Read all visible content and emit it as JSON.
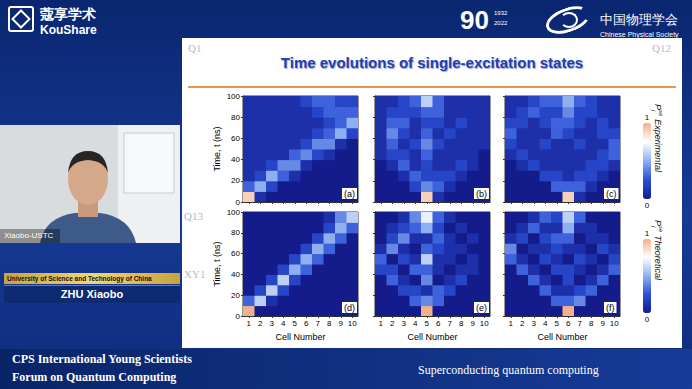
{
  "header": {
    "logo_cn": "蔻享学术",
    "logo_en": "KouShare",
    "anniversary": "90",
    "years": [
      "1932",
      "2022"
    ],
    "society_cn": "中国物理学会",
    "society_en": "Chinese Physical Society"
  },
  "speaker": {
    "video_label": "Xiaobo-USTC",
    "affiliation": "University of Science and Technology of China",
    "name": "ZHU Xiaobo"
  },
  "slide": {
    "title": "Time evolutions of single-excitation states",
    "background_labels": [
      "Q1",
      "Q12",
      "Q13",
      "XY1"
    ],
    "colorbars": [
      {
        "symbol": "P",
        "subscript": "j",
        "superscript": "se",
        "caption": "Experimental",
        "range": [
          0,
          1
        ],
        "ticks": [
          0,
          1
        ]
      },
      {
        "symbol": "P",
        "subscript": "j",
        "superscript": "se",
        "caption": "Theoretical",
        "range": [
          0,
          1
        ],
        "ticks": [
          0,
          1
        ]
      }
    ]
  },
  "chart_data": [
    {
      "type": "heatmap",
      "label": "(a)",
      "ylabel": "Time, t (ns)",
      "tick_labels": "y",
      "x": [
        1,
        2,
        3,
        4,
        5,
        6,
        7,
        8,
        9,
        10
      ],
      "y": [
        0,
        10,
        20,
        30,
        40,
        50,
        60,
        70,
        80,
        90
      ],
      "xlim": [
        0.5,
        10.5
      ],
      "ylim": [
        0,
        100
      ],
      "xticks": [
        1,
        2,
        3,
        4,
        5,
        6,
        7,
        8,
        9,
        10
      ],
      "yticks": [
        0,
        20,
        40,
        60,
        80,
        100
      ],
      "cells": [
        [
          0.9,
          0.1,
          0,
          0,
          0,
          0,
          0,
          0,
          0,
          0
        ],
        [
          0.3,
          0.5,
          0.2,
          0,
          0,
          0,
          0,
          0,
          0,
          0
        ],
        [
          0.1,
          0.2,
          0.5,
          0.3,
          0.1,
          0,
          0,
          0,
          0,
          0
        ],
        [
          0.1,
          0.1,
          0.2,
          0.4,
          0.4,
          0.1,
          0,
          0,
          0,
          0
        ],
        [
          0.1,
          0.1,
          0.1,
          0.1,
          0.3,
          0.4,
          0.2,
          0.1,
          0,
          0
        ],
        [
          0.1,
          0.1,
          0.1,
          0.1,
          0.1,
          0.2,
          0.4,
          0.4,
          0.1,
          0
        ],
        [
          0.1,
          0.1,
          0.1,
          0.1,
          0.1,
          0.1,
          0.2,
          0.3,
          0.5,
          0.2
        ],
        [
          0.1,
          0.1,
          0.1,
          0.1,
          0.1,
          0.1,
          0.1,
          0.2,
          0.3,
          0.5
        ],
        [
          0.1,
          0.1,
          0.1,
          0.1,
          0.1,
          0.1,
          0.2,
          0.3,
          0.3,
          0.3
        ],
        [
          0.1,
          0.1,
          0.1,
          0.1,
          0.1,
          0.2,
          0.3,
          0.3,
          0.2,
          0.2
        ]
      ]
    },
    {
      "type": "heatmap",
      "label": "(b)",
      "tick_labels": false,
      "x": [
        1,
        2,
        3,
        4,
        5,
        6,
        7,
        8,
        9,
        10
      ],
      "y": [
        0,
        10,
        20,
        30,
        40,
        50,
        60,
        70,
        80,
        90
      ],
      "xlim": [
        0.5,
        10.5
      ],
      "ylim": [
        0,
        100
      ],
      "xticks": [
        1,
        2,
        3,
        4,
        5,
        6,
        7,
        8,
        9,
        10
      ],
      "yticks": [
        0,
        20,
        40,
        60,
        80,
        100
      ],
      "cells": [
        [
          0,
          0,
          0,
          0,
          0.9,
          0.1,
          0,
          0,
          0,
          0
        ],
        [
          0,
          0,
          0,
          0.2,
          0.4,
          0.3,
          0.1,
          0,
          0,
          0
        ],
        [
          0,
          0,
          0.1,
          0.3,
          0.2,
          0.2,
          0.2,
          0.1,
          0,
          0
        ],
        [
          0,
          0.1,
          0.3,
          0.1,
          0.2,
          0.1,
          0.1,
          0.2,
          0.1,
          0
        ],
        [
          0.1,
          0.2,
          0.2,
          0.1,
          0.3,
          0.1,
          0.1,
          0.1,
          0.1,
          0
        ],
        [
          0.1,
          0.3,
          0.1,
          0.2,
          0.4,
          0.2,
          0.1,
          0.1,
          0.1,
          0.1
        ],
        [
          0.1,
          0.4,
          0.2,
          0.1,
          0.3,
          0.1,
          0.2,
          0.1,
          0.1,
          0.1
        ],
        [
          0.1,
          0.3,
          0.3,
          0.1,
          0.2,
          0.2,
          0.1,
          0.2,
          0.1,
          0.1
        ],
        [
          0.1,
          0.2,
          0.2,
          0.2,
          0.3,
          0.3,
          0.1,
          0.1,
          0.1,
          0.1
        ],
        [
          0.1,
          0.1,
          0.2,
          0.3,
          0.6,
          0.3,
          0.1,
          0.1,
          0.1,
          0.1
        ]
      ]
    },
    {
      "type": "heatmap",
      "label": "(c)",
      "tick_labels": false,
      "x": [
        1,
        2,
        3,
        4,
        5,
        6,
        7,
        8,
        9,
        10
      ],
      "y": [
        0,
        10,
        20,
        30,
        40,
        50,
        60,
        70,
        80,
        90
      ],
      "xlim": [
        0.5,
        10.5
      ],
      "ylim": [
        0,
        100
      ],
      "xticks": [
        1,
        2,
        3,
        4,
        5,
        6,
        7,
        8,
        9,
        10
      ],
      "yticks": [
        0,
        20,
        40,
        60,
        80,
        100
      ],
      "cells": [
        [
          0,
          0,
          0,
          0,
          0,
          0.9,
          0.1,
          0,
          0,
          0
        ],
        [
          0,
          0,
          0,
          0,
          0.3,
          0.3,
          0.3,
          0.1,
          0,
          0
        ],
        [
          0,
          0,
          0,
          0.2,
          0.2,
          0.1,
          0.2,
          0.2,
          0.1,
          0
        ],
        [
          0,
          0.1,
          0.2,
          0.1,
          0.1,
          0.1,
          0.1,
          0.2,
          0.2,
          0.1
        ],
        [
          0.1,
          0.2,
          0.1,
          0.1,
          0.1,
          0.1,
          0.1,
          0.1,
          0.2,
          0.3
        ],
        [
          0.2,
          0.1,
          0.1,
          0.2,
          0.1,
          0.1,
          0.2,
          0.1,
          0.1,
          0.3
        ],
        [
          0.3,
          0.1,
          0.1,
          0.1,
          0.3,
          0.2,
          0.1,
          0.1,
          0.2,
          0.2
        ],
        [
          0.2,
          0.2,
          0.1,
          0.2,
          0.3,
          0.3,
          0.2,
          0.1,
          0.2,
          0.1
        ],
        [
          0.1,
          0.2,
          0.3,
          0.2,
          0.2,
          0.4,
          0.2,
          0.2,
          0.1,
          0.1
        ],
        [
          0.1,
          0.1,
          0.2,
          0.3,
          0.3,
          0.5,
          0.3,
          0.2,
          0.1,
          0.1
        ]
      ]
    },
    {
      "type": "heatmap",
      "label": "(d)",
      "xlabel": "Cell Number",
      "ylabel": "Time, t (ns)",
      "tick_labels": true,
      "x": [
        1,
        2,
        3,
        4,
        5,
        6,
        7,
        8,
        9,
        10
      ],
      "y": [
        0,
        10,
        20,
        30,
        40,
        50,
        60,
        70,
        80,
        90
      ],
      "xlim": [
        0.5,
        10.5
      ],
      "ylim": [
        0,
        100
      ],
      "xticks": [
        1,
        2,
        3,
        4,
        5,
        6,
        7,
        8,
        9,
        10
      ],
      "yticks": [
        0,
        20,
        40,
        60,
        80,
        100
      ],
      "cells": [
        [
          1.0,
          0,
          0,
          0,
          0,
          0,
          0,
          0,
          0,
          0
        ],
        [
          0.3,
          0.6,
          0.1,
          0,
          0,
          0,
          0,
          0,
          0,
          0
        ],
        [
          0,
          0.2,
          0.6,
          0.2,
          0,
          0,
          0,
          0,
          0,
          0
        ],
        [
          0,
          0,
          0.2,
          0.6,
          0.2,
          0,
          0,
          0,
          0,
          0
        ],
        [
          0,
          0,
          0,
          0.2,
          0.5,
          0.3,
          0,
          0,
          0,
          0
        ],
        [
          0,
          0,
          0,
          0,
          0.2,
          0.5,
          0.3,
          0,
          0,
          0
        ],
        [
          0,
          0,
          0,
          0,
          0,
          0.2,
          0.5,
          0.3,
          0,
          0
        ],
        [
          0,
          0,
          0,
          0,
          0,
          0,
          0.2,
          0.5,
          0.3,
          0
        ],
        [
          0,
          0,
          0,
          0,
          0,
          0,
          0,
          0.2,
          0.5,
          0.3
        ],
        [
          0,
          0,
          0,
          0,
          0,
          0,
          0,
          0.1,
          0.4,
          0.6
        ]
      ]
    },
    {
      "type": "heatmap",
      "label": "(e)",
      "xlabel": "Cell Number",
      "tick_labels": "x",
      "x": [
        1,
        2,
        3,
        4,
        5,
        6,
        7,
        8,
        9,
        10
      ],
      "y": [
        0,
        10,
        20,
        30,
        40,
        50,
        60,
        70,
        80,
        90
      ],
      "xlim": [
        0.5,
        10.5
      ],
      "ylim": [
        0,
        100
      ],
      "xticks": [
        1,
        2,
        3,
        4,
        5,
        6,
        7,
        8,
        9,
        10
      ],
      "yticks": [
        0,
        20,
        40,
        60,
        80,
        100
      ],
      "cells": [
        [
          0,
          0,
          0,
          0,
          1.0,
          0,
          0,
          0,
          0,
          0
        ],
        [
          0,
          0,
          0,
          0.3,
          0.4,
          0.3,
          0,
          0,
          0,
          0
        ],
        [
          0,
          0,
          0.2,
          0.2,
          0.1,
          0.3,
          0.2,
          0,
          0,
          0
        ],
        [
          0,
          0.3,
          0.1,
          0,
          0.4,
          0,
          0.1,
          0.2,
          0,
          0
        ],
        [
          0.2,
          0.2,
          0,
          0.3,
          0.3,
          0.1,
          0,
          0.1,
          0.1,
          0
        ],
        [
          0.3,
          0,
          0.2,
          0.1,
          0.6,
          0.1,
          0.1,
          0,
          0.1,
          0
        ],
        [
          0.1,
          0.4,
          0.1,
          0,
          0.3,
          0.2,
          0.1,
          0.1,
          0,
          0
        ],
        [
          0,
          0.2,
          0.4,
          0.1,
          0.1,
          0.3,
          0.1,
          0,
          0.1,
          0
        ],
        [
          0,
          0.1,
          0.2,
          0.3,
          0.5,
          0.2,
          0,
          0.1,
          0,
          0
        ],
        [
          0,
          0,
          0.1,
          0.4,
          0.7,
          0.3,
          0.1,
          0,
          0,
          0
        ]
      ]
    },
    {
      "type": "heatmap",
      "label": "(f)",
      "xlabel": "Cell Number",
      "tick_labels": "x",
      "x": [
        1,
        2,
        3,
        4,
        5,
        6,
        7,
        8,
        9,
        10
      ],
      "y": [
        0,
        10,
        20,
        30,
        40,
        50,
        60,
        70,
        80,
        90
      ],
      "xlim": [
        0.5,
        10.5
      ],
      "ylim": [
        0,
        100
      ],
      "xticks": [
        1,
        2,
        3,
        4,
        5,
        6,
        7,
        8,
        9,
        10
      ],
      "yticks": [
        0,
        20,
        40,
        60,
        80,
        100
      ],
      "cells": [
        [
          0,
          0,
          0,
          0,
          0,
          1.0,
          0,
          0,
          0,
          0
        ],
        [
          0,
          0,
          0,
          0,
          0.3,
          0.3,
          0.4,
          0,
          0,
          0
        ],
        [
          0,
          0,
          0,
          0.3,
          0.1,
          0.1,
          0.2,
          0.3,
          0,
          0
        ],
        [
          0,
          0,
          0.3,
          0.1,
          0,
          0.2,
          0,
          0.1,
          0.3,
          0
        ],
        [
          0,
          0.3,
          0.1,
          0,
          0.2,
          0.2,
          0.1,
          0,
          0.1,
          0.3
        ],
        [
          0.3,
          0.1,
          0,
          0.2,
          0.1,
          0,
          0.2,
          0.1,
          0,
          0.2
        ],
        [
          0.4,
          0,
          0.1,
          0.1,
          0.2,
          0.1,
          0.1,
          0,
          0.2,
          0.1
        ],
        [
          0.1,
          0.2,
          0,
          0.2,
          0.3,
          0.3,
          0,
          0.1,
          0.1,
          0
        ],
        [
          0,
          0.1,
          0.3,
          0.1,
          0.1,
          0.5,
          0.1,
          0.1,
          0,
          0
        ],
        [
          0,
          0,
          0.1,
          0.3,
          0.2,
          0.6,
          0.3,
          0,
          0,
          0
        ]
      ]
    }
  ],
  "footer": {
    "forum": [
      "CPS International Young Scientists",
      "Forum on Quantum Computing"
    ],
    "session": "Superconducting quantum computing"
  }
}
